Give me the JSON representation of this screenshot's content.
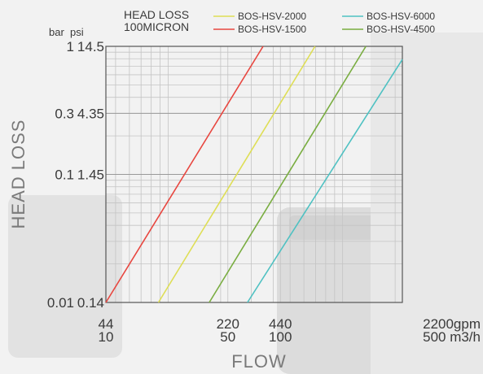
{
  "chart_data": {
    "type": "line",
    "title": "HEAD LOSS",
    "subtitle": "100MICRON",
    "xlabel": "FLOW",
    "ylabel": "HEAD LOSS",
    "x_scale": "log",
    "y_scale": "log",
    "xlim": [
      44,
      2200
    ],
    "ylim": [
      0.01,
      1
    ],
    "units": {
      "y_primary": "bar",
      "y_secondary": "psi",
      "x_primary": "gpm",
      "x_secondary": "m3/h"
    },
    "y_ticks": [
      {
        "bar": "1",
        "psi": "14.5",
        "value": 1
      },
      {
        "bar": "0.3",
        "psi": "4.35",
        "value": 0.3
      },
      {
        "bar": "0.1",
        "psi": "1.45",
        "value": 0.1
      },
      {
        "bar": "0.01",
        "psi": "0.14",
        "value": 0.01
      }
    ],
    "x_ticks": [
      {
        "gpm": "44",
        "m3h": "10",
        "value": 44
      },
      {
        "gpm": "220",
        "m3h": "50",
        "value": 220
      },
      {
        "gpm": "440",
        "m3h": "100",
        "value": 440
      },
      {
        "gpm": "2200gpm",
        "m3h": "500 m3/h",
        "value": 2200
      }
    ],
    "series": [
      {
        "name": "BOS-HSV-1500",
        "color": "#e8463f",
        "points": [
          [
            44,
            0.01
          ],
          [
            350,
            1
          ]
        ]
      },
      {
        "name": "BOS-HSV-2000",
        "color": "#dede55",
        "points": [
          [
            88,
            0.01
          ],
          [
            695,
            1
          ]
        ]
      },
      {
        "name": "BOS-HSV-4500",
        "color": "#79ad40",
        "points": [
          [
            172,
            0.01
          ],
          [
            1360,
            1
          ]
        ]
      },
      {
        "name": "BOS-HSV-6000",
        "color": "#4ec1c2",
        "points": [
          [
            285,
            0.01
          ],
          [
            2200,
            0.79
          ]
        ]
      }
    ],
    "legend_position": "top",
    "grid": true
  }
}
